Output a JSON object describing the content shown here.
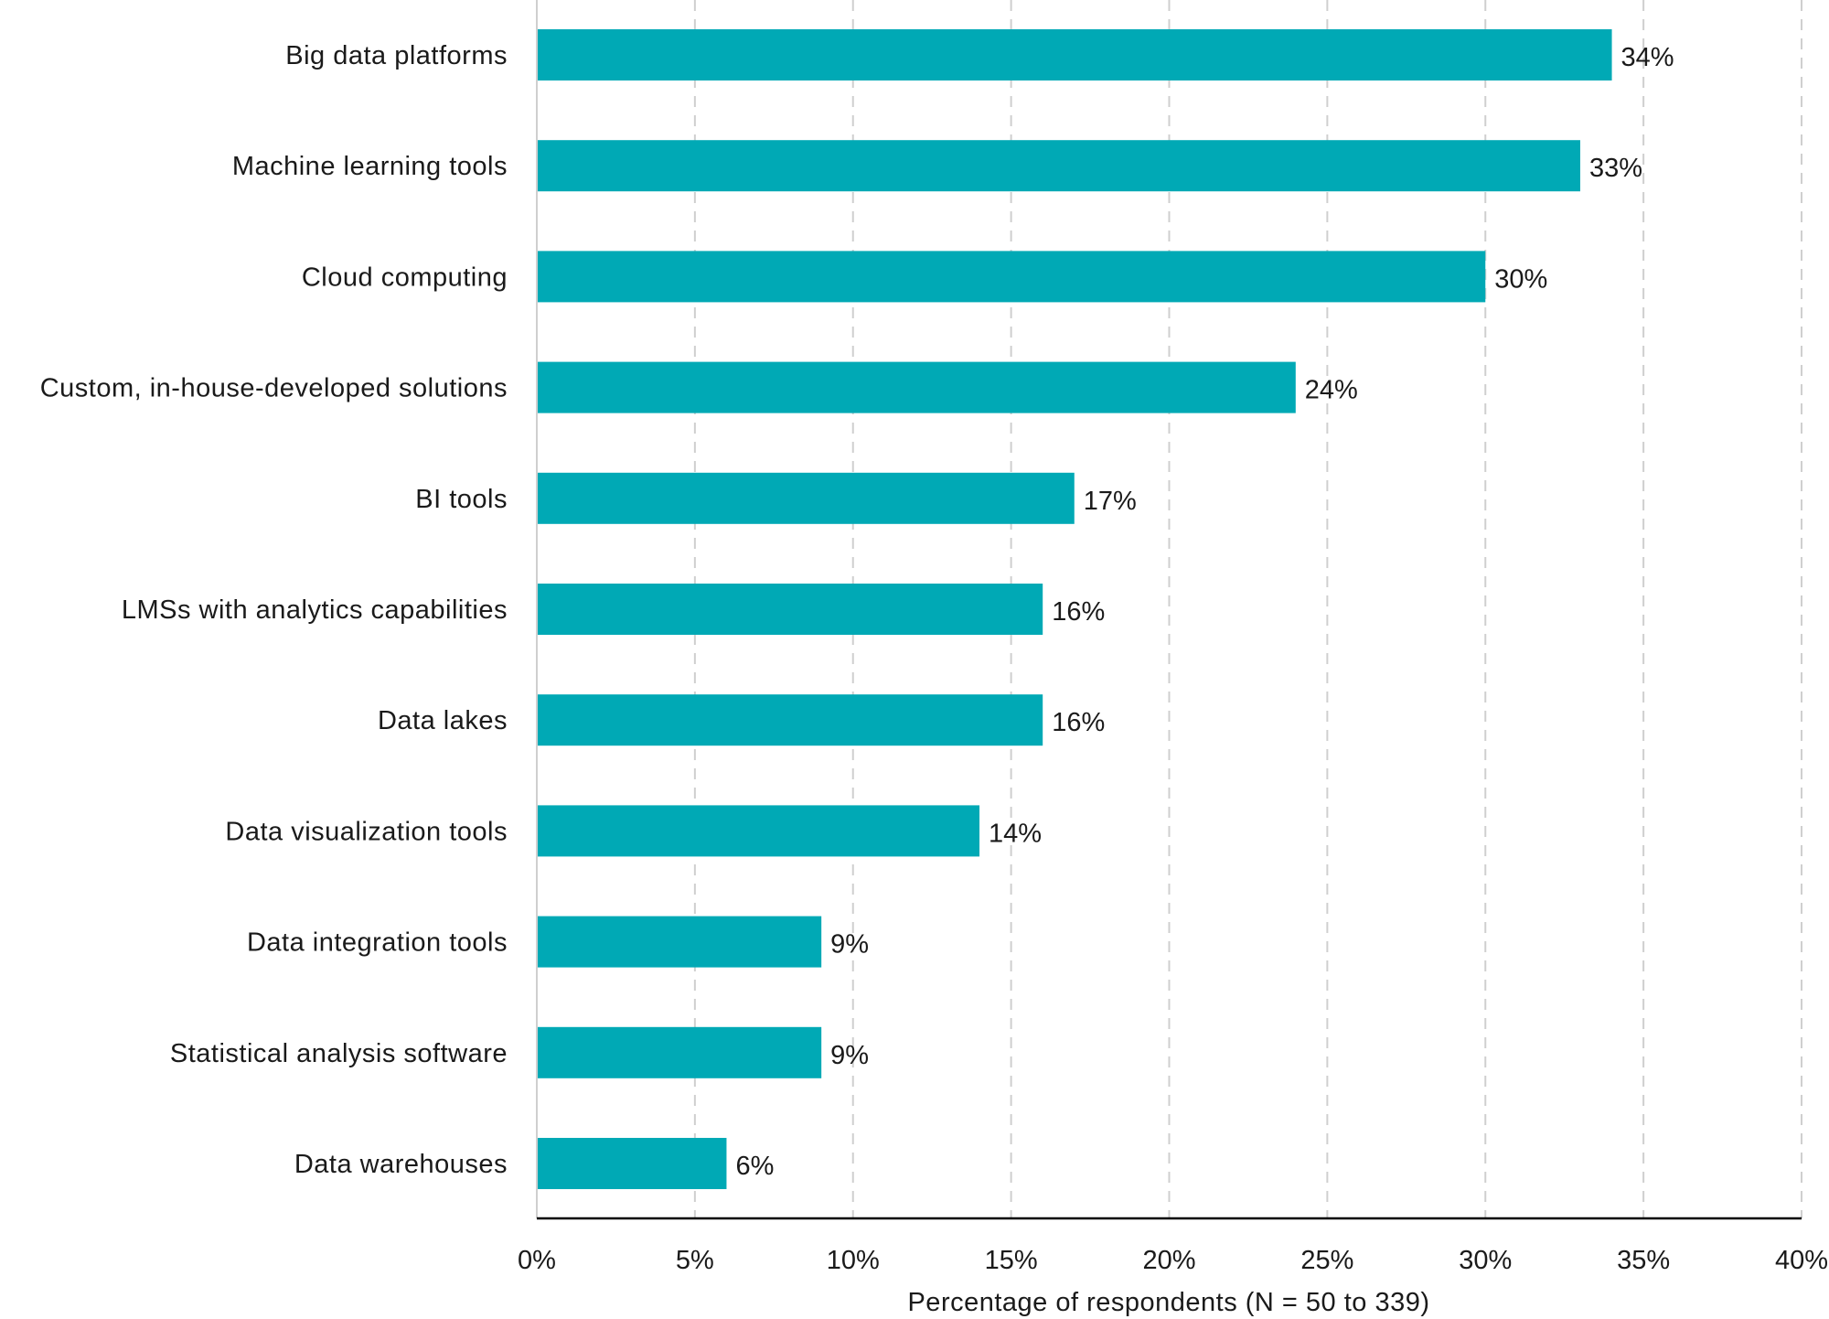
{
  "chart_data": {
    "type": "bar",
    "orientation": "horizontal",
    "categories": [
      "Big data platforms",
      "Machine learning tools",
      "Cloud computing",
      "Custom, in-house-developed solutions",
      "BI tools",
      "LMSs with analytics capabilities",
      "Data lakes",
      "Data visualization tools",
      "Data integration tools",
      "Statistical analysis software",
      "Data warehouses"
    ],
    "values": [
      34,
      33,
      30,
      24,
      17,
      16,
      16,
      14,
      9,
      9,
      6
    ],
    "value_labels": [
      "34%",
      "33%",
      "30%",
      "24%",
      "17%",
      "16%",
      "16%",
      "14%",
      "9%",
      "9%",
      "6%"
    ],
    "xlabel": "Percentage of respondents (N = 50 to 339)",
    "ylabel": "",
    "xlim": [
      0,
      40
    ],
    "ticks": [
      0,
      5,
      10,
      15,
      20,
      25,
      30,
      35,
      40
    ],
    "tick_labels": [
      "0%",
      "5%",
      "10%",
      "15%",
      "20%",
      "25%",
      "30%",
      "35%",
      "40%"
    ],
    "grid": "vertical dashed",
    "legend": "none",
    "bar_color": "#00a9b5"
  }
}
